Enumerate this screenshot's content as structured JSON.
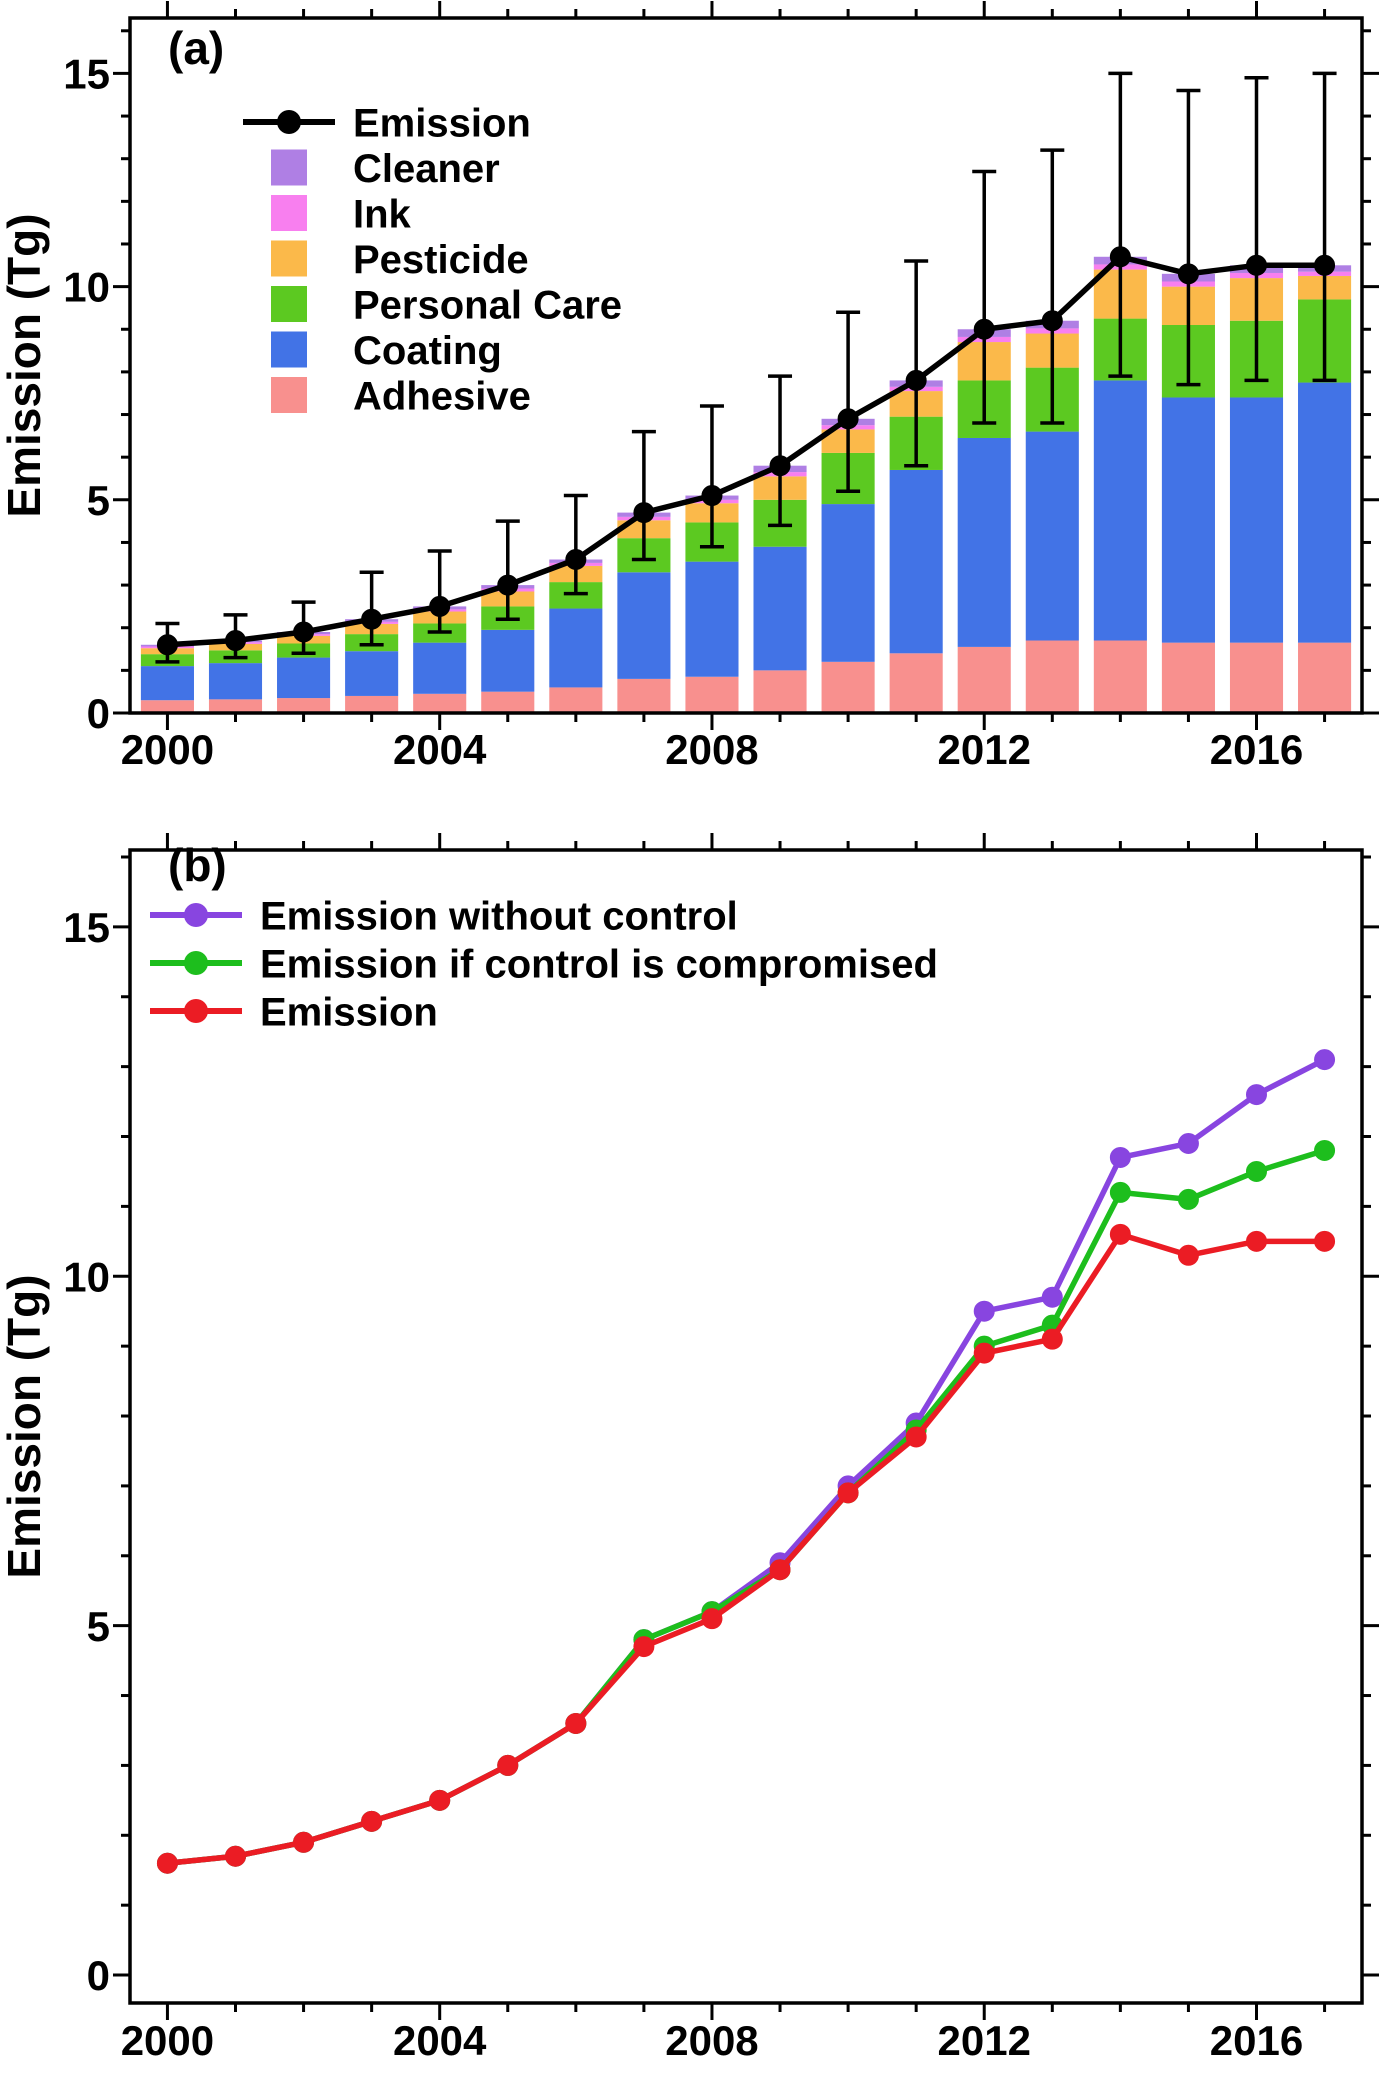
{
  "figure": {
    "ylabel": "Emission (Tg)"
  },
  "chart_data": [
    {
      "panel_label": "(a)",
      "type": "bar",
      "stacked": true,
      "title": "",
      "xlabel": "",
      "ylabel": "Emission (Tg)",
      "x": [
        2000,
        2001,
        2002,
        2003,
        2004,
        2005,
        2006,
        2007,
        2008,
        2009,
        2010,
        2011,
        2012,
        2013,
        2014,
        2015,
        2016,
        2017
      ],
      "x_major_ticks": [
        2000,
        2004,
        2008,
        2012,
        2016
      ],
      "ylim": [
        0,
        16.3
      ],
      "y_major_ticks": [
        0,
        5,
        10,
        15
      ],
      "y_minor_step": 1,
      "grid": false,
      "legend_position": "top-left-inside",
      "bars": [
        {
          "name": "Adhesive",
          "color": "#F8908E",
          "values": [
            0.3,
            0.32,
            0.35,
            0.4,
            0.45,
            0.5,
            0.6,
            0.8,
            0.85,
            1.0,
            1.2,
            1.4,
            1.55,
            1.7,
            1.7,
            1.65,
            1.65,
            1.65
          ]
        },
        {
          "name": "Coating",
          "color": "#4273E6",
          "values": [
            0.8,
            0.85,
            0.95,
            1.05,
            1.2,
            1.45,
            1.85,
            2.5,
            2.7,
            2.9,
            3.7,
            4.3,
            4.9,
            4.9,
            6.1,
            5.75,
            5.75,
            6.1
          ]
        },
        {
          "name": "Personal Care",
          "color": "#5CC921",
          "values": [
            0.28,
            0.3,
            0.33,
            0.4,
            0.45,
            0.55,
            0.62,
            0.8,
            0.92,
            1.1,
            1.2,
            1.25,
            1.35,
            1.5,
            1.45,
            1.7,
            1.8,
            1.95
          ]
        },
        {
          "name": "Pesticide",
          "color": "#FBB94A",
          "values": [
            0.14,
            0.15,
            0.18,
            0.24,
            0.28,
            0.35,
            0.38,
            0.42,
            0.45,
            0.55,
            0.55,
            0.6,
            0.9,
            0.8,
            1.15,
            0.9,
            1.0,
            0.55
          ]
        },
        {
          "name": "Ink",
          "color": "#F87FEF",
          "values": [
            0.04,
            0.04,
            0.04,
            0.05,
            0.05,
            0.07,
            0.07,
            0.08,
            0.08,
            0.1,
            0.1,
            0.1,
            0.12,
            0.12,
            0.12,
            0.12,
            0.12,
            0.1
          ]
        },
        {
          "name": "Cleaner",
          "color": "#AF7FE4",
          "values": [
            0.04,
            0.04,
            0.05,
            0.06,
            0.07,
            0.08,
            0.08,
            0.1,
            0.1,
            0.15,
            0.15,
            0.15,
            0.18,
            0.18,
            0.18,
            0.18,
            0.18,
            0.15
          ]
        }
      ],
      "lines": [
        {
          "name": "Emission",
          "color": "#000000",
          "values": [
            1.6,
            1.7,
            1.9,
            2.2,
            2.5,
            3.0,
            3.6,
            4.7,
            5.1,
            5.8,
            6.9,
            7.8,
            9.0,
            9.2,
            10.7,
            10.3,
            10.5,
            10.5
          ],
          "err_high": [
            2.1,
            2.3,
            2.6,
            3.3,
            3.8,
            4.5,
            5.1,
            6.6,
            7.2,
            7.9,
            9.4,
            10.6,
            12.7,
            13.2,
            15.0,
            14.6,
            14.9,
            15.0
          ],
          "err_low": [
            1.2,
            1.3,
            1.4,
            1.6,
            1.9,
            2.2,
            2.8,
            3.6,
            3.9,
            4.4,
            5.2,
            5.8,
            6.8,
            6.8,
            7.9,
            7.7,
            7.8,
            7.8
          ]
        }
      ],
      "legend": [
        "Emission",
        "Cleaner",
        "Ink",
        "Pesticide",
        "Personal Care",
        "Coating",
        "Adhesive"
      ]
    },
    {
      "panel_label": "(b)",
      "type": "line",
      "title": "",
      "xlabel": "",
      "ylabel": "Emission (Tg)",
      "x": [
        2000,
        2001,
        2002,
        2003,
        2004,
        2005,
        2006,
        2007,
        2008,
        2009,
        2010,
        2011,
        2012,
        2013,
        2014,
        2015,
        2016,
        2017
      ],
      "x_major_ticks": [
        2000,
        2004,
        2008,
        2012,
        2016
      ],
      "ylim": [
        -0.4,
        16.1
      ],
      "y_major_ticks": [
        0,
        5,
        10,
        15
      ],
      "y_minor_step": 1,
      "grid": false,
      "legend_position": "top-left-inside",
      "lines": [
        {
          "name": "Emission without control",
          "color": "#8845E0",
          "values": [
            1.6,
            1.7,
            1.9,
            2.2,
            2.5,
            3.0,
            3.6,
            4.8,
            5.2,
            5.9,
            7.0,
            7.9,
            9.5,
            9.7,
            11.7,
            11.9,
            12.6,
            13.1
          ]
        },
        {
          "name": "Emission if control is compromised",
          "color": "#1DBE1D",
          "values": [
            1.6,
            1.7,
            1.9,
            2.2,
            2.5,
            3.0,
            3.6,
            4.8,
            5.2,
            5.8,
            6.9,
            7.8,
            9.0,
            9.3,
            11.2,
            11.1,
            11.5,
            11.8
          ]
        },
        {
          "name": "Emission",
          "color": "#EB1C24",
          "values": [
            1.6,
            1.7,
            1.9,
            2.2,
            2.5,
            3.0,
            3.6,
            4.7,
            5.1,
            5.8,
            6.9,
            7.7,
            8.9,
            9.1,
            10.6,
            10.3,
            10.5,
            10.5
          ]
        }
      ],
      "legend": [
        "Emission without control",
        "Emission if control is compromised",
        "Emission"
      ]
    }
  ]
}
